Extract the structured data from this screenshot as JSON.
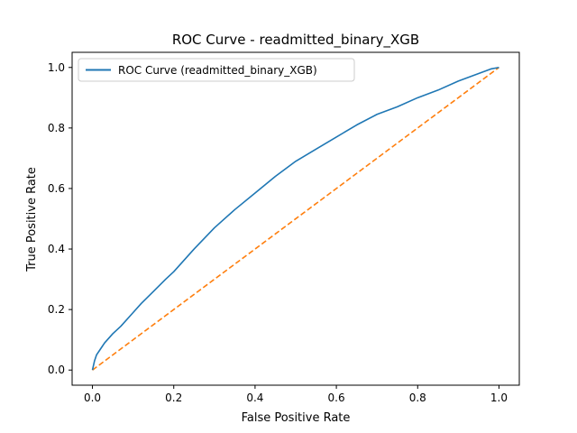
{
  "chart_data": {
    "type": "line",
    "title": "ROC Curve - readmitted_binary_XGB",
    "xlabel": "False Positive Rate",
    "ylabel": "True Positive Rate",
    "xlim": [
      -0.05,
      1.05
    ],
    "ylim": [
      -0.05,
      1.05
    ],
    "xticks": [
      "0.0",
      "0.2",
      "0.4",
      "0.6",
      "0.8",
      "1.0"
    ],
    "yticks": [
      "0.0",
      "0.2",
      "0.4",
      "0.6",
      "0.8",
      "1.0"
    ],
    "grid": false,
    "legend_position": "upper-left",
    "series": [
      {
        "name": "ROC Curve (readmitted_binary_XGB)",
        "color": "#1f77b4",
        "style": "solid",
        "x": [
          0,
          0.005,
          0.01,
          0.02,
          0.03,
          0.05,
          0.07,
          0.1,
          0.12,
          0.15,
          0.18,
          0.2,
          0.25,
          0.3,
          0.35,
          0.4,
          0.45,
          0.5,
          0.55,
          0.6,
          0.65,
          0.7,
          0.75,
          0.8,
          0.85,
          0.9,
          0.95,
          0.98,
          1.0
        ],
        "y": [
          0,
          0.03,
          0.05,
          0.07,
          0.09,
          0.12,
          0.145,
          0.19,
          0.22,
          0.26,
          0.3,
          0.325,
          0.4,
          0.47,
          0.53,
          0.585,
          0.64,
          0.69,
          0.73,
          0.77,
          0.81,
          0.845,
          0.87,
          0.9,
          0.925,
          0.955,
          0.98,
          0.995,
          1.0
        ]
      },
      {
        "name": "",
        "color": "#ff7f0e",
        "style": "dashed",
        "x": [
          0,
          1
        ],
        "y": [
          0,
          1
        ]
      }
    ]
  }
}
